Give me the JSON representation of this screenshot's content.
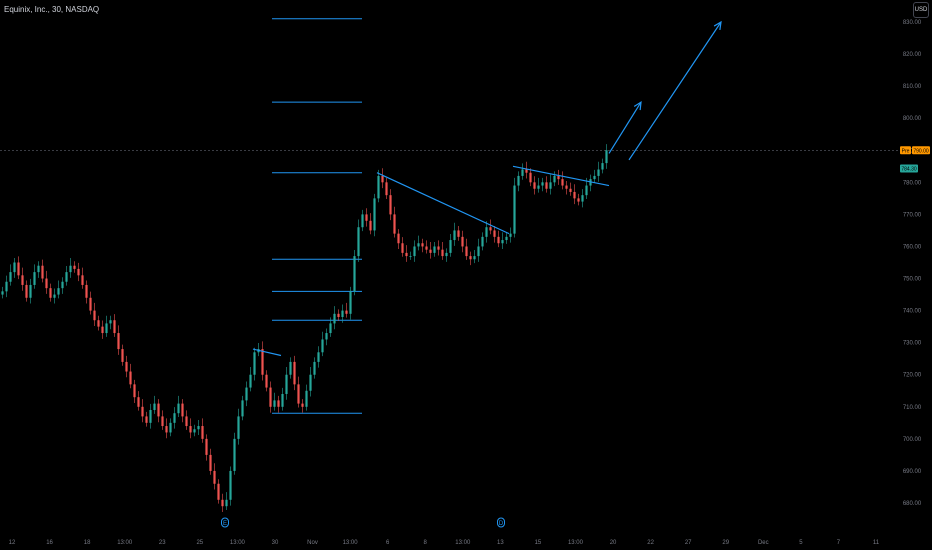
{
  "header": {
    "symbol": "Equinix, Inc., 30, NASDAQ"
  },
  "currency_button": "USD",
  "chart_data": {
    "type": "candlestick",
    "title": "Equinix, Inc., 30, NASDAQ",
    "currency": "USD",
    "ylim": [
      675,
      834
    ],
    "y_ticks": [
      680,
      690,
      700,
      710,
      720,
      730,
      740,
      750,
      760,
      770,
      780,
      790,
      800,
      810,
      820,
      830
    ],
    "y_tick_labels": [
      "680.00",
      "690.00",
      "700.00",
      "710.00",
      "720.00",
      "730.00",
      "740.00",
      "750.00",
      "760.00",
      "770.00",
      "780.00",
      "790.00",
      "800.00",
      "810.00",
      "820.00",
      "830.00"
    ],
    "x_tick_labels": [
      "12",
      "16",
      "18",
      "13:00",
      "23",
      "25",
      "13:00",
      "30",
      "Nov",
      "13:00",
      "6",
      "8",
      "13:00",
      "13",
      "15",
      "13:00",
      "20",
      "22",
      "27",
      "29",
      "Dec",
      "5",
      "7",
      "11"
    ],
    "price_badges": [
      {
        "label": "Pre",
        "value": "790.00",
        "price": 790.0,
        "color": "#ff9800"
      },
      {
        "label": "",
        "value": "784.30",
        "price": 784.3,
        "color": "#26a69a"
      }
    ],
    "event_markers": [
      "E",
      "D"
    ],
    "series": [
      {
        "name": "",
        "points": [
          [
            0,
            746
          ],
          [
            1,
            749
          ],
          [
            2,
            752
          ],
          [
            3,
            755
          ],
          [
            4,
            751
          ],
          [
            5,
            748
          ],
          [
            6,
            744
          ],
          [
            7,
            748
          ],
          [
            8,
            752
          ],
          [
            9,
            754
          ],
          [
            10,
            750
          ],
          [
            11,
            747
          ],
          [
            12,
            744
          ],
          [
            13,
            745
          ],
          [
            14,
            747
          ],
          [
            15,
            749
          ],
          [
            16,
            752
          ],
          [
            17,
            754
          ],
          [
            18,
            753
          ],
          [
            19,
            751
          ],
          [
            20,
            748
          ],
          [
            21,
            744
          ],
          [
            22,
            740
          ],
          [
            23,
            737
          ],
          [
            24,
            735
          ],
          [
            25,
            733
          ],
          [
            26,
            736
          ],
          [
            27,
            737
          ],
          [
            28,
            733
          ],
          [
            29,
            728
          ],
          [
            30,
            724
          ],
          [
            31,
            721
          ],
          [
            32,
            717
          ],
          [
            33,
            713
          ],
          [
            34,
            710
          ],
          [
            35,
            707
          ],
          [
            36,
            705
          ],
          [
            37,
            709
          ],
          [
            38,
            711
          ],
          [
            39,
            707
          ],
          [
            40,
            704
          ],
          [
            41,
            702
          ],
          [
            42,
            705
          ],
          [
            43,
            708
          ],
          [
            44,
            711
          ],
          [
            45,
            707
          ],
          [
            46,
            704
          ],
          [
            47,
            702
          ],
          [
            48,
            703
          ],
          [
            49,
            704
          ],
          [
            50,
            700
          ],
          [
            51,
            695
          ],
          [
            52,
            690
          ],
          [
            53,
            686
          ],
          [
            54,
            681
          ],
          [
            55,
            679
          ],
          [
            56,
            681
          ],
          [
            57,
            690
          ],
          [
            58,
            700
          ],
          [
            59,
            707
          ],
          [
            60,
            712
          ],
          [
            61,
            716
          ],
          [
            62,
            720
          ],
          [
            63,
            727
          ],
          [
            64,
            728
          ],
          [
            65,
            720
          ],
          [
            66,
            716
          ],
          [
            67,
            710
          ],
          [
            68,
            712
          ],
          [
            69,
            710
          ],
          [
            70,
            714
          ],
          [
            71,
            720
          ],
          [
            72,
            724
          ],
          [
            73,
            717
          ],
          [
            74,
            711
          ],
          [
            75,
            710
          ],
          [
            76,
            715
          ],
          [
            77,
            720
          ],
          [
            78,
            724
          ],
          [
            79,
            727
          ],
          [
            80,
            731
          ],
          [
            81,
            733
          ],
          [
            82,
            736
          ],
          [
            83,
            739
          ],
          [
            84,
            738
          ],
          [
            85,
            740
          ],
          [
            86,
            739
          ],
          [
            87,
            746
          ],
          [
            88,
            757
          ],
          [
            89,
            766
          ],
          [
            90,
            770
          ],
          [
            91,
            768
          ],
          [
            92,
            765
          ],
          [
            93,
            775
          ],
          [
            94,
            782
          ],
          [
            95,
            780
          ],
          [
            96,
            776
          ],
          [
            97,
            770
          ],
          [
            98,
            764
          ],
          [
            99,
            761
          ],
          [
            100,
            758
          ],
          [
            101,
            757
          ],
          [
            102,
            757
          ],
          [
            103,
            760
          ],
          [
            104,
            761
          ],
          [
            105,
            760
          ],
          [
            106,
            759
          ],
          [
            107,
            758
          ],
          [
            108,
            760
          ],
          [
            109,
            759
          ],
          [
            110,
            757
          ],
          [
            111,
            758
          ],
          [
            112,
            762
          ],
          [
            113,
            765
          ],
          [
            114,
            763
          ],
          [
            115,
            760
          ],
          [
            116,
            757
          ],
          [
            117,
            756
          ],
          [
            118,
            757
          ],
          [
            119,
            760
          ],
          [
            120,
            763
          ],
          [
            121,
            766
          ],
          [
            122,
            765
          ],
          [
            123,
            763
          ],
          [
            124,
            761
          ],
          [
            125,
            762
          ],
          [
            126,
            763
          ],
          [
            127,
            764
          ],
          [
            128,
            779
          ],
          [
            129,
            782
          ],
          [
            130,
            784
          ],
          [
            131,
            783
          ],
          [
            132,
            780
          ],
          [
            133,
            778
          ],
          [
            134,
            779
          ],
          [
            135,
            780
          ],
          [
            136,
            778
          ],
          [
            137,
            780
          ],
          [
            138,
            782
          ],
          [
            139,
            781
          ],
          [
            140,
            779
          ],
          [
            141,
            778
          ],
          [
            142,
            777
          ],
          [
            143,
            775
          ],
          [
            144,
            774
          ],
          [
            145,
            776
          ],
          [
            146,
            779
          ],
          [
            147,
            781
          ],
          [
            148,
            782
          ],
          [
            149,
            784
          ],
          [
            150,
            786
          ],
          [
            151,
            790
          ]
        ]
      }
    ],
    "annotations": [
      {
        "type": "trendline",
        "from": [
          63,
          728
        ],
        "to": [
          70,
          726
        ]
      },
      {
        "type": "trendline",
        "from": [
          94,
          783
        ],
        "to": [
          127,
          764
        ]
      },
      {
        "type": "trendline",
        "from": [
          128,
          785
        ],
        "to": [
          152,
          779
        ]
      },
      {
        "type": "arrow",
        "from": [
          152,
          789
        ],
        "to": [
          160,
          805
        ]
      },
      {
        "type": "arrow",
        "from": [
          157,
          787
        ],
        "to": [
          180,
          830
        ]
      },
      {
        "type": "horizontal_level",
        "price": 831
      },
      {
        "type": "horizontal_level",
        "price": 805
      },
      {
        "type": "horizontal_level",
        "price": 783
      },
      {
        "type": "horizontal_level",
        "price": 756
      },
      {
        "type": "horizontal_level",
        "price": 746
      },
      {
        "type": "horizontal_level",
        "price": 737
      },
      {
        "type": "horizontal_level",
        "price": 708
      }
    ],
    "grid": false,
    "legend": "none"
  }
}
